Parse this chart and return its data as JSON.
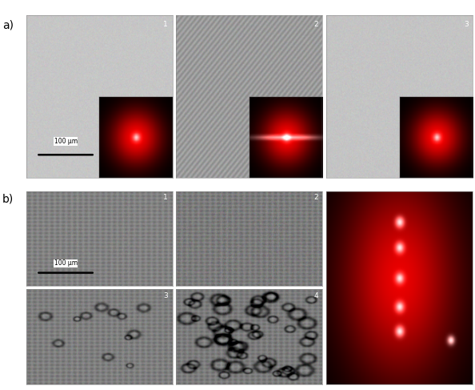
{
  "fig_width": 5.94,
  "fig_height": 4.87,
  "dpi": 100,
  "bg_color": "#ffffff",
  "label_a": "a)",
  "label_b": "b)",
  "scalebar_text": "100 μm"
}
